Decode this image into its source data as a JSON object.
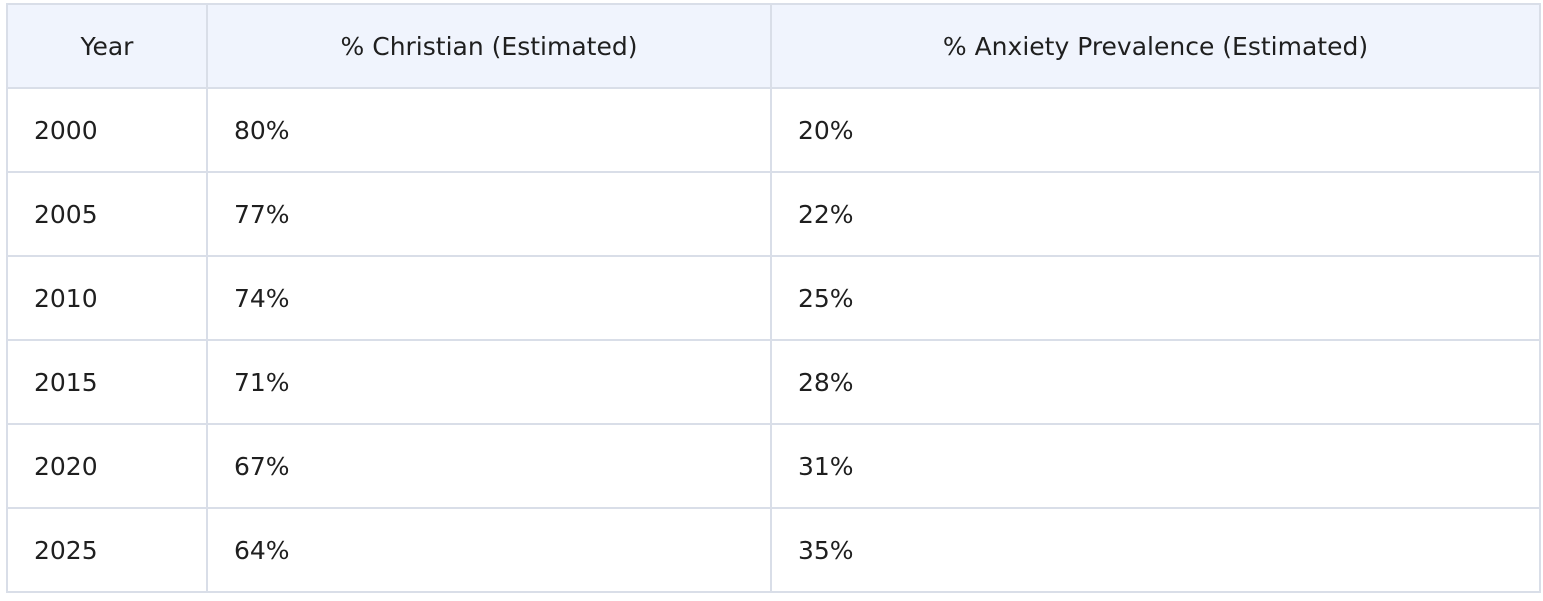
{
  "table": {
    "header": [
      "Year",
      "% Christian (Estimated)",
      "% Anxiety Prevalence (Estimated)"
    ],
    "rows": [
      [
        "2000",
        "80%",
        "20%"
      ],
      [
        "2005",
        "77%",
        "22%"
      ],
      [
        "2010",
        "74%",
        "25%"
      ],
      [
        "2015",
        "71%",
        "28%"
      ],
      [
        "2020",
        "67%",
        "31%"
      ],
      [
        "2025",
        "64%",
        "35%"
      ]
    ]
  }
}
